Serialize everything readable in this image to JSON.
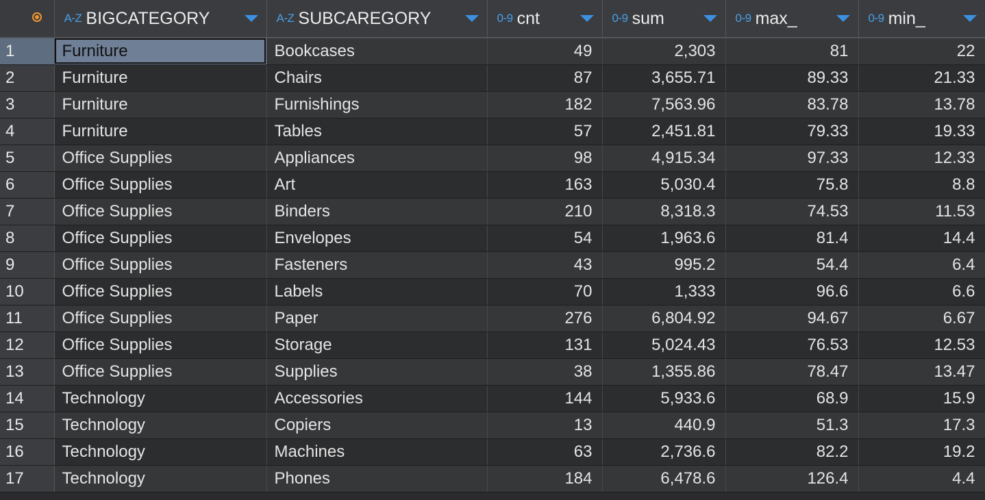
{
  "columns": [
    {
      "key": "bigcategory",
      "type_badge": "A-Z",
      "name": "BIGCATEGORY"
    },
    {
      "key": "subcategory",
      "type_badge": "A-Z",
      "name": "SUBCAREGORY"
    },
    {
      "key": "cnt",
      "type_badge": "0-9",
      "name": "cnt"
    },
    {
      "key": "sum",
      "type_badge": "0-9",
      "name": "sum"
    },
    {
      "key": "max",
      "type_badge": "0-9",
      "name": "max_"
    },
    {
      "key": "min",
      "type_badge": "0-9",
      "name": "min_"
    }
  ],
  "colors": {
    "accent": "#3d8fe0",
    "selector": "#f0962e",
    "header_bg": "#3a3c40",
    "row_odd": "#353739",
    "row_even": "#2c2d2f",
    "active_cell": "#6f7f96"
  },
  "icons": {
    "row_selector": "record-icon",
    "sort": "chevron-down-icon"
  },
  "active_cell": {
    "row": 1,
    "column": "bigcategory"
  },
  "rows": [
    {
      "index": "1",
      "bigcategory": "Furniture",
      "subcategory": "Bookcases",
      "cnt": "49",
      "sum": "2,303",
      "max": "81",
      "min": "22"
    },
    {
      "index": "2",
      "bigcategory": "Furniture",
      "subcategory": "Chairs",
      "cnt": "87",
      "sum": "3,655.71",
      "max": "89.33",
      "min": "21.33"
    },
    {
      "index": "3",
      "bigcategory": "Furniture",
      "subcategory": "Furnishings",
      "cnt": "182",
      "sum": "7,563.96",
      "max": "83.78",
      "min": "13.78"
    },
    {
      "index": "4",
      "bigcategory": "Furniture",
      "subcategory": "Tables",
      "cnt": "57",
      "sum": "2,451.81",
      "max": "79.33",
      "min": "19.33"
    },
    {
      "index": "5",
      "bigcategory": "Office Supplies",
      "subcategory": "Appliances",
      "cnt": "98",
      "sum": "4,915.34",
      "max": "97.33",
      "min": "12.33"
    },
    {
      "index": "6",
      "bigcategory": "Office Supplies",
      "subcategory": "Art",
      "cnt": "163",
      "sum": "5,030.4",
      "max": "75.8",
      "min": "8.8"
    },
    {
      "index": "7",
      "bigcategory": "Office Supplies",
      "subcategory": "Binders",
      "cnt": "210",
      "sum": "8,318.3",
      "max": "74.53",
      "min": "11.53"
    },
    {
      "index": "8",
      "bigcategory": "Office Supplies",
      "subcategory": "Envelopes",
      "cnt": "54",
      "sum": "1,963.6",
      "max": "81.4",
      "min": "14.4"
    },
    {
      "index": "9",
      "bigcategory": "Office Supplies",
      "subcategory": "Fasteners",
      "cnt": "43",
      "sum": "995.2",
      "max": "54.4",
      "min": "6.4"
    },
    {
      "index": "10",
      "bigcategory": "Office Supplies",
      "subcategory": "Labels",
      "cnt": "70",
      "sum": "1,333",
      "max": "96.6",
      "min": "6.6"
    },
    {
      "index": "11",
      "bigcategory": "Office Supplies",
      "subcategory": "Paper",
      "cnt": "276",
      "sum": "6,804.92",
      "max": "94.67",
      "min": "6.67"
    },
    {
      "index": "12",
      "bigcategory": "Office Supplies",
      "subcategory": "Storage",
      "cnt": "131",
      "sum": "5,024.43",
      "max": "76.53",
      "min": "12.53"
    },
    {
      "index": "13",
      "bigcategory": "Office Supplies",
      "subcategory": "Supplies",
      "cnt": "38",
      "sum": "1,355.86",
      "max": "78.47",
      "min": "13.47"
    },
    {
      "index": "14",
      "bigcategory": "Technology",
      "subcategory": "Accessories",
      "cnt": "144",
      "sum": "5,933.6",
      "max": "68.9",
      "min": "15.9"
    },
    {
      "index": "15",
      "bigcategory": "Technology",
      "subcategory": "Copiers",
      "cnt": "13",
      "sum": "440.9",
      "max": "51.3",
      "min": "17.3"
    },
    {
      "index": "16",
      "bigcategory": "Technology",
      "subcategory": "Machines",
      "cnt": "63",
      "sum": "2,736.6",
      "max": "82.2",
      "min": "19.2"
    },
    {
      "index": "17",
      "bigcategory": "Technology",
      "subcategory": "Phones",
      "cnt": "184",
      "sum": "6,478.6",
      "max": "126.4",
      "min": "4.4"
    }
  ]
}
